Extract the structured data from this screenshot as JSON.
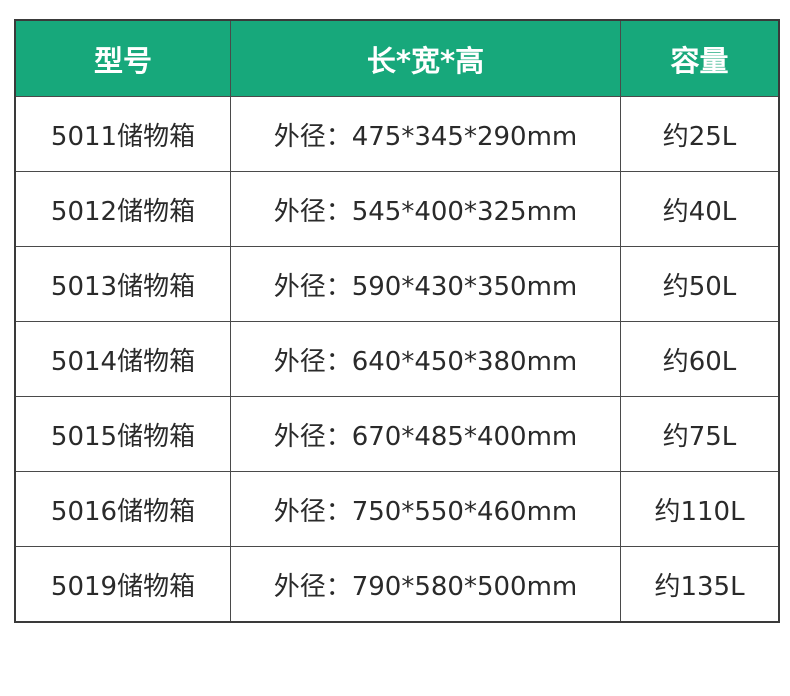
{
  "colors": {
    "header_bg": "#17a87b",
    "header_text": "#ffffff",
    "border": "#4a4a4a"
  },
  "headers": [
    "型号",
    "长*宽*高",
    "容量"
  ],
  "rows": [
    [
      "5011储物箱",
      "外径：475*345*290mm",
      "约25L"
    ],
    [
      "5012储物箱",
      "外径：545*400*325mm",
      "约40L"
    ],
    [
      "5013储物箱",
      "外径：590*430*350mm",
      "约50L"
    ],
    [
      "5014储物箱",
      "外径：640*450*380mm",
      "约60L"
    ],
    [
      "5015储物箱",
      "外径：670*485*400mm",
      "约75L"
    ],
    [
      "5016储物箱",
      "外径：750*550*460mm",
      "约110L"
    ],
    [
      "5019储物箱",
      "外径：790*580*500mm",
      "约135L"
    ]
  ]
}
